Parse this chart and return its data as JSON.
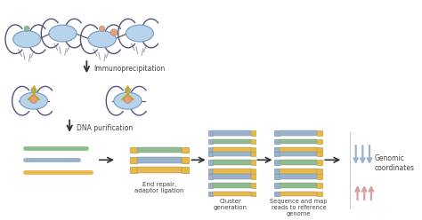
{
  "bg_color": "#ffffff",
  "colors": {
    "green": "#8fbc8f",
    "blue_light": "#9ab3cc",
    "gold": "#e8b84b",
    "pink": "#e8a0a0",
    "histone_blue": "#b8d4ec",
    "histone_edge": "#7799bb",
    "dna_line": "#555577",
    "antibody_yellow": "#d4aa00",
    "arrow_blue": "#9ab3cc",
    "arrow_pink": "#d4a0a0",
    "text_color": "#444444",
    "arrow_dark": "#333333"
  },
  "labels": {
    "immunoprecip": "Immunoprecipitation",
    "dna_purif": "DNA purification",
    "end_repair": "End repair,\nadaptor ligation",
    "cluster": "Cluster\ngeneration",
    "seq_map": "Sequence and map\nreads to reference\ngenome",
    "genomic": "Genomic\ncoordinates"
  },
  "figsize": [
    4.74,
    2.48
  ],
  "dpi": 100
}
